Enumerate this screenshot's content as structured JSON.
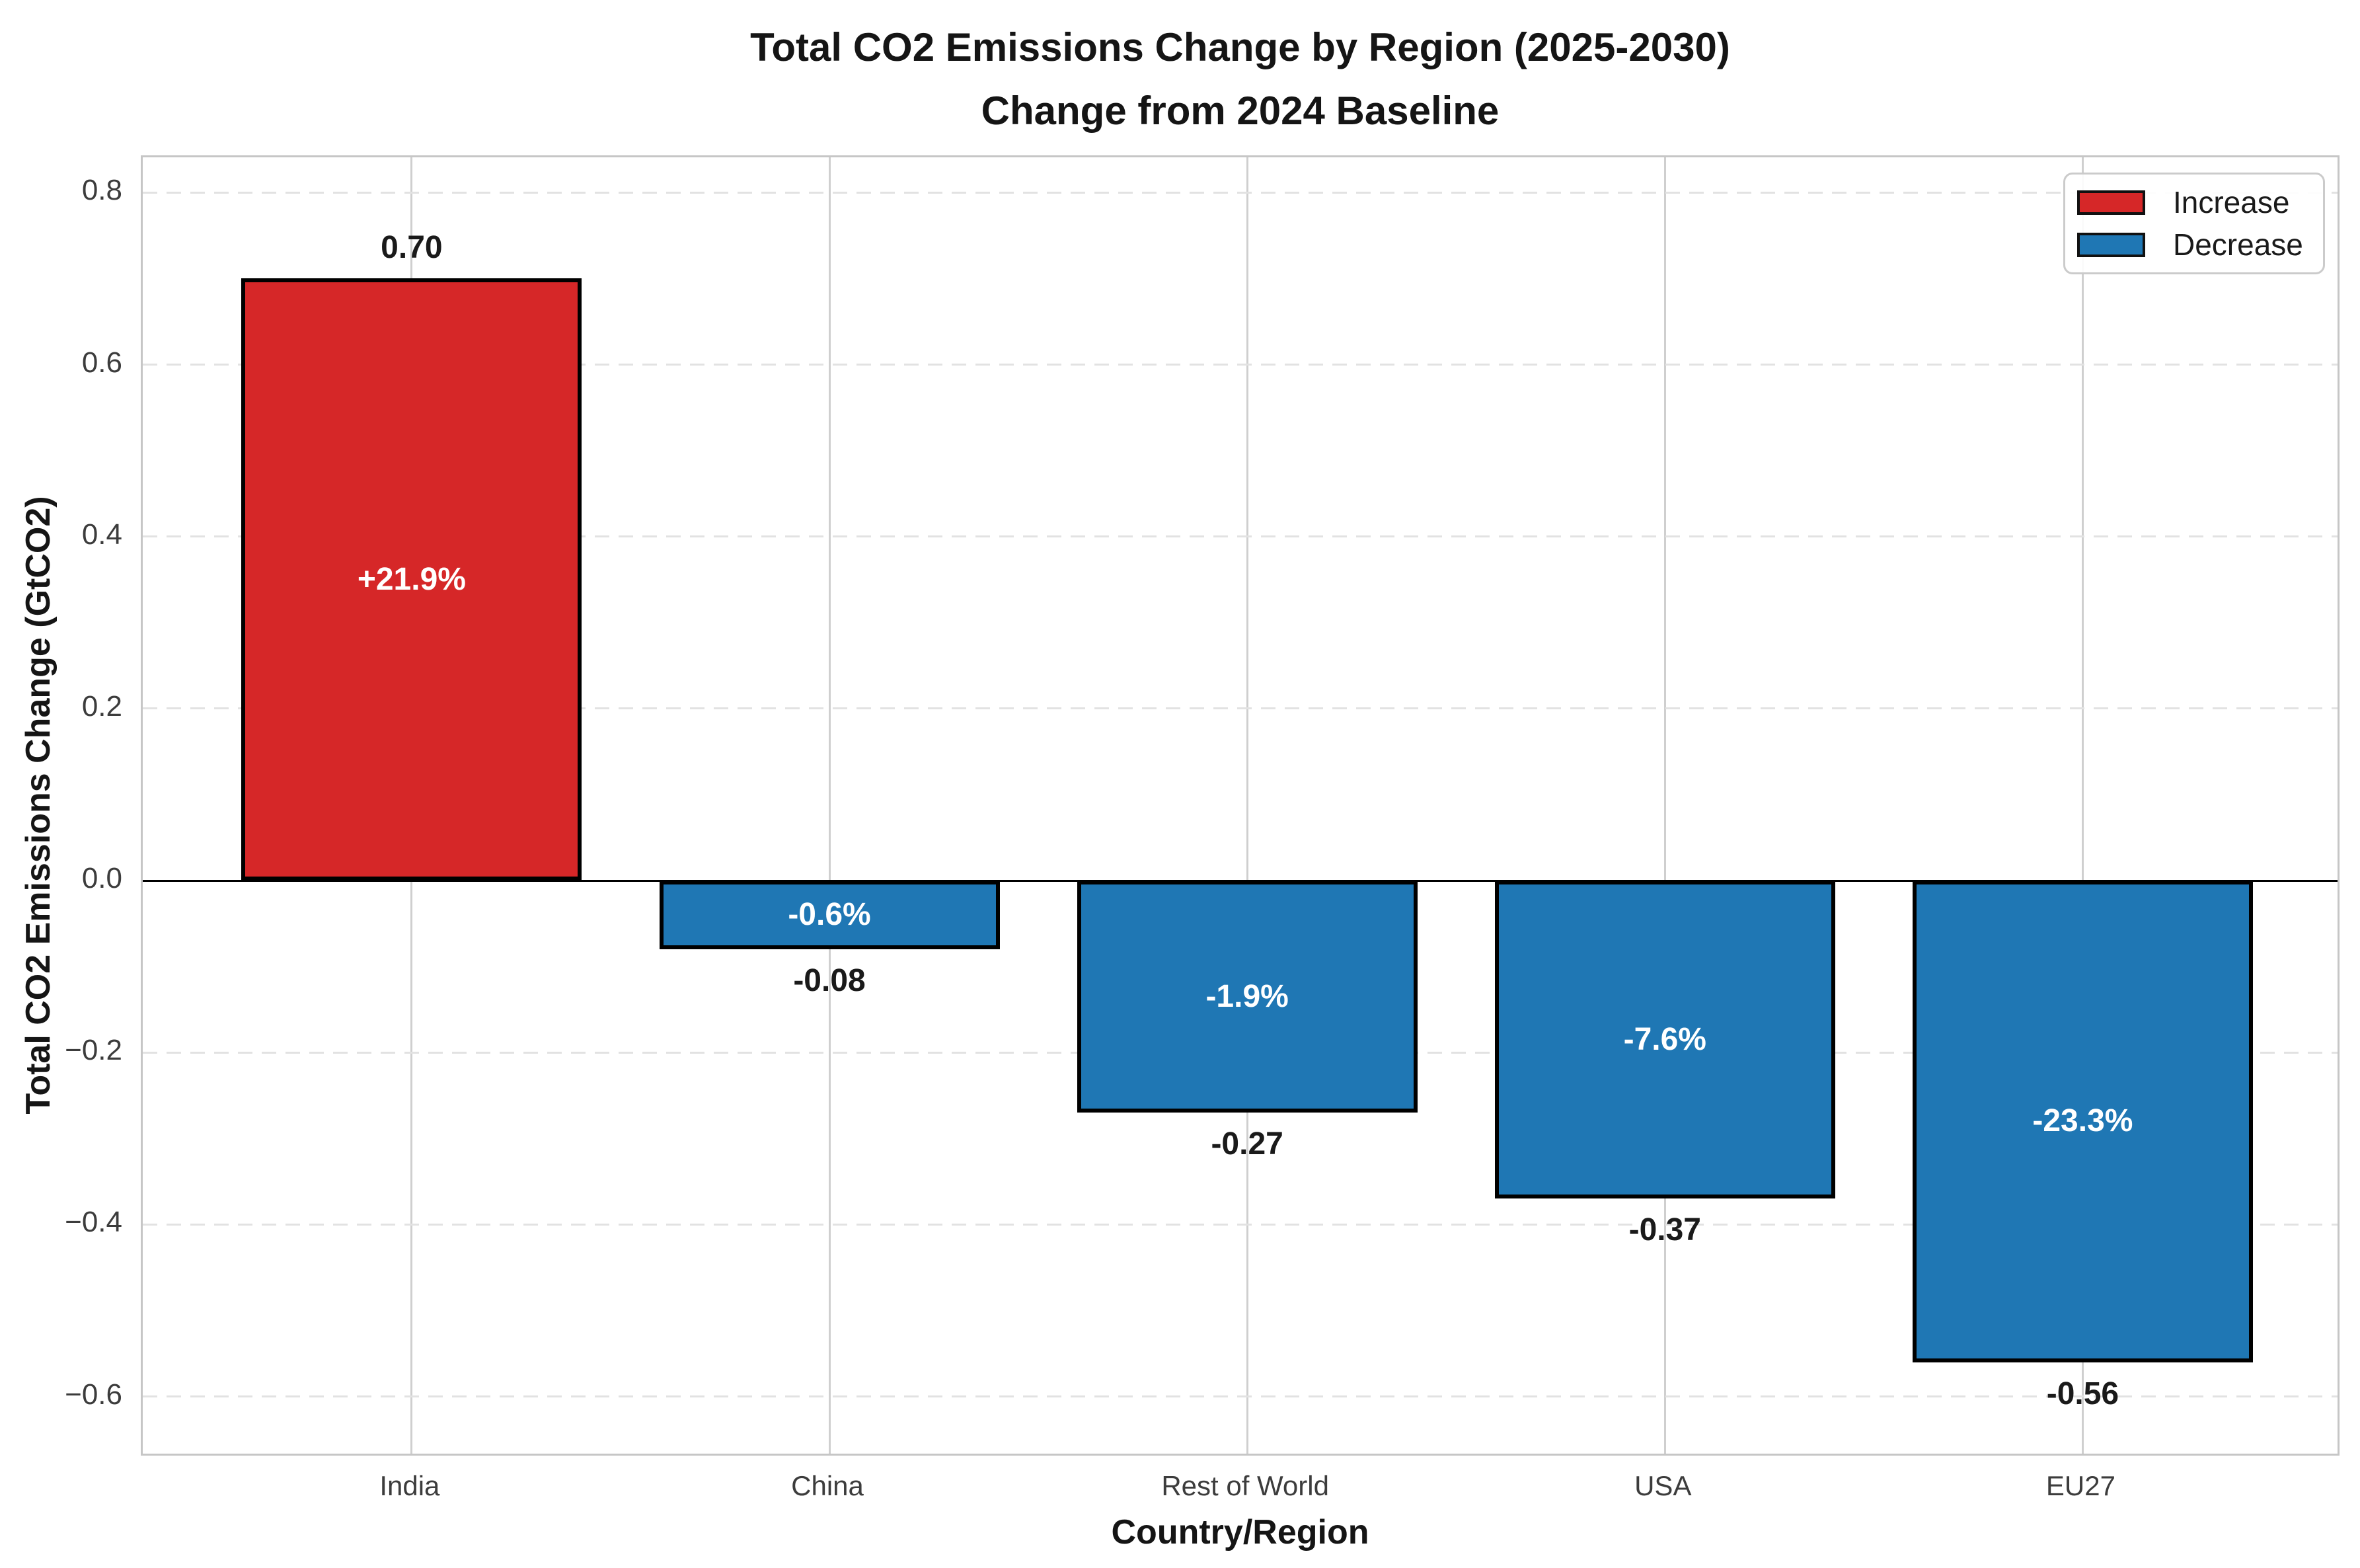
{
  "chart_data": {
    "type": "bar",
    "title_lines": [
      "Total CO2 Emissions Change by Region (2025-2030)",
      "Change from 2024 Baseline"
    ],
    "xlabel": "Country/Region",
    "ylabel": "Total CO2 Emissions Change (GtCO2)",
    "categories": [
      "India",
      "China",
      "Rest of World",
      "USA",
      "EU27"
    ],
    "values": [
      0.7,
      -0.08,
      -0.27,
      -0.37,
      -0.56
    ],
    "value_labels": [
      "0.70",
      "-0.08",
      "-0.27",
      "-0.37",
      "-0.56"
    ],
    "pct_labels": [
      "+21.9%",
      "-0.6%",
      "-1.9%",
      "-7.6%",
      "-23.3%"
    ],
    "bar_colors": [
      "#d62728",
      "#1f77b4",
      "#1f77b4",
      "#1f77b4",
      "#1f77b4"
    ],
    "yticks": [
      0.8,
      0.6,
      0.4,
      0.2,
      0.0,
      -0.2,
      -0.4,
      -0.6
    ],
    "ytick_labels": [
      "0.8",
      "0.6",
      "0.4",
      "0.2",
      "0.0",
      "−0.2",
      "−0.4",
      "−0.6"
    ],
    "ylim": [
      -0.671,
      0.841
    ],
    "grid": true,
    "zero_line_color": "#000000",
    "legend_position": "upper right",
    "legend": [
      {
        "label": "Increase",
        "color": "#d62728"
      },
      {
        "label": "Decrease",
        "color": "#1f77b4"
      }
    ]
  }
}
